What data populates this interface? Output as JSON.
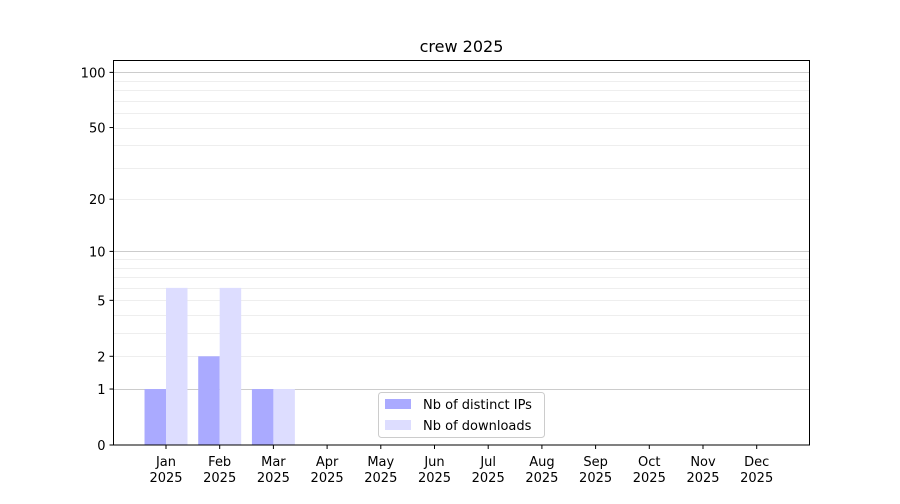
{
  "chart_data": {
    "type": "bar",
    "title": "crew 2025",
    "xlabel": "",
    "ylabel": "",
    "yscale": "log(1+y)",
    "ylim": [
      0,
      116
    ],
    "yticks": [
      0,
      1,
      2,
      5,
      10,
      20,
      50,
      100
    ],
    "ytick_labels": [
      "0",
      "1",
      "2",
      "5",
      "10",
      "20",
      "50",
      "100"
    ],
    "grid": true,
    "legend_position": "bottom-center",
    "categories": [
      "Jan\n2025",
      "Feb\n2025",
      "Mar\n2025",
      "Apr\n2025",
      "May\n2025",
      "Jun\n2025",
      "Jul\n2025",
      "Aug\n2025",
      "Sep\n2025",
      "Oct\n2025",
      "Nov\n2025",
      "Dec\n2025"
    ],
    "series": [
      {
        "name": "Nb of distinct IPs",
        "color": "#aaaaff",
        "values": [
          1,
          2,
          1,
          0,
          0,
          0,
          0,
          0,
          0,
          0,
          0,
          0
        ]
      },
      {
        "name": "Nb of downloads",
        "color": "#ddddff",
        "values": [
          6,
          6,
          1,
          0,
          0,
          0,
          0,
          0,
          0,
          0,
          0,
          0
        ]
      }
    ]
  }
}
